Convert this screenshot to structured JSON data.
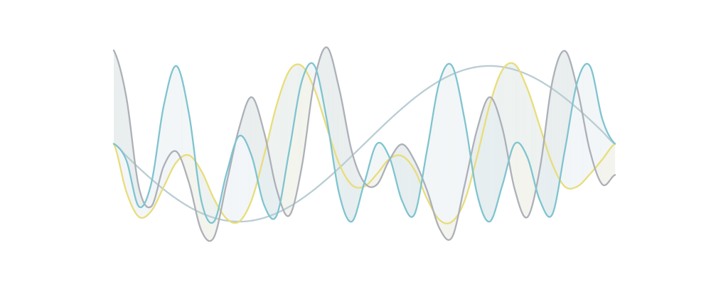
{
  "chart_data": {
    "type": "line",
    "title": "",
    "xlabel": "",
    "ylabel": "",
    "xlim": [
      0,
      2
    ],
    "ylim": [
      -1.3,
      1.3
    ],
    "grid": false,
    "axes_visible": false,
    "legend": "none",
    "x": [
      0,
      0.05,
      0.1,
      0.15,
      0.2,
      0.25,
      0.3,
      0.35,
      0.4,
      0.45,
      0.5,
      0.55,
      0.6,
      0.65,
      0.7,
      0.75,
      0.8,
      0.85,
      0.9,
      0.95,
      1.0,
      1.05,
      1.1,
      1.15,
      1.2,
      1.25,
      1.3,
      1.35,
      1.4,
      1.45,
      1.5,
      1.55,
      1.6,
      1.65,
      1.7,
      1.75,
      1.8,
      1.85,
      1.9,
      1.95,
      2.0
    ],
    "series": [
      {
        "color": "#e8dd7a",
        "values": [
          0.0,
          -0.613,
          -0.938,
          -0.863,
          -0.548,
          -0.237,
          -0.148,
          -0.351,
          -0.707,
          -0.961,
          -1.0,
          -0.724,
          -0.147,
          0.498,
          0.937,
          1.003,
          0.707,
          0.21,
          -0.262,
          -0.529,
          -0.548,
          -0.388,
          -0.195,
          -0.157,
          -0.335,
          -0.707,
          -0.979,
          -1.0,
          -0.733,
          -0.157,
          0.5,
          0.945,
          1.021,
          0.71,
          0.224,
          -0.262,
          -0.55,
          -0.548,
          -0.39,
          -0.198,
          0.0
        ]
      },
      {
        "color": "#acb0b8",
        "values": [
          1.2,
          0.601,
          -0.555,
          -0.804,
          -0.282,
          -0.1,
          -0.5,
          -1.119,
          -1.2,
          -0.508,
          0.2,
          0.6,
          0.147,
          -0.588,
          -0.924,
          -0.3,
          0.801,
          1.24,
          0.7,
          -0.1,
          -0.5,
          -0.524,
          -0.206,
          -0.006,
          -0.216,
          -0.6,
          -1.089,
          -1.2,
          -0.53,
          0.188,
          0.6,
          0.207,
          -0.588,
          -0.944,
          -0.324,
          0.801,
          1.194,
          0.7,
          -0.092,
          -0.524,
          -0.4
        ]
      },
      {
        "color": "#7fc4cf",
        "values": [
          0.0,
          -0.21,
          -0.807,
          -0.503,
          0.5,
          1.0,
          0.386,
          -0.74,
          -1.0,
          -0.38,
          0.1,
          -0.155,
          -0.788,
          -0.922,
          -0.094,
          0.8,
          1.01,
          0.309,
          -0.65,
          -1.0,
          -0.5,
          0.0,
          -0.175,
          -0.73,
          -0.906,
          -0.082,
          0.8,
          1.0,
          0.31,
          -0.65,
          -1.0,
          -0.538,
          0.0,
          -0.171,
          -0.726,
          -0.906,
          -0.08,
          0.8,
          1.0,
          0.31,
          0.0
        ]
      },
      {
        "color": "#b9cdd4",
        "values": [
          0.0,
          -0.156,
          -0.309,
          -0.454,
          -0.588,
          -0.707,
          -0.809,
          -0.891,
          -0.951,
          -0.988,
          -1.0,
          -0.988,
          -0.951,
          -0.891,
          -0.809,
          -0.707,
          -0.588,
          -0.454,
          -0.309,
          -0.156,
          0.0,
          0.156,
          0.309,
          0.454,
          0.588,
          0.707,
          0.809,
          0.891,
          0.951,
          0.988,
          1.0,
          0.988,
          0.951,
          0.891,
          0.809,
          0.707,
          0.588,
          0.454,
          0.309,
          0.156,
          0.0
        ]
      }
    ],
    "fills": [
      {
        "between": [
          0,
          1
        ],
        "colors": {
          "pos": "#f3ecd4",
          "neg": "#f1efec"
        }
      },
      {
        "between": [
          0,
          2
        ],
        "colors": {
          "pos": "#e4eff8",
          "neg": "#eef5fb"
        }
      },
      {
        "between": [
          1,
          2
        ],
        "colors": {
          "pos": "#dfe7e8",
          "neg": "#eef3f3"
        }
      }
    ]
  }
}
